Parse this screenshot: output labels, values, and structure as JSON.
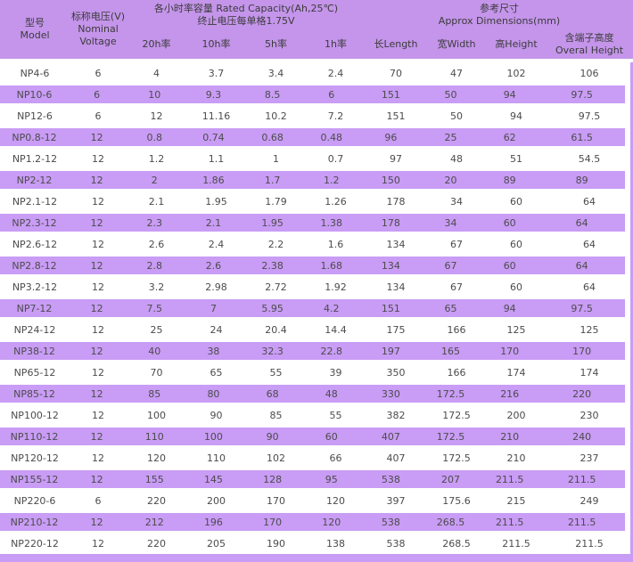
{
  "colors": {
    "header_bg": "#c495ea",
    "stripe_bg": "#c99cf5",
    "header_text": "#3b3b3b",
    "text": "#4c4c4c"
  },
  "header": {
    "model_zh": "型号",
    "model_en": "Model",
    "voltage_zh": "标称电压(V)",
    "voltage_en1": "Nominal",
    "voltage_en2": "Voltage",
    "capacity_line1": "各小时率容量 Rated Capacity(Ah,25℃)",
    "capacity_line2": "终止电压每单格1.75V",
    "capacity_cols": [
      "20h率",
      "10h率",
      "5h率",
      "1h率"
    ],
    "dim_zh": "参考尺寸",
    "dim_en": "Approx Dimensions(mm)",
    "dim_cols": [
      "长Length",
      "宽Width",
      "高Height"
    ],
    "overall_zh": "含端子高度",
    "overall_en": "Overal Height"
  },
  "rows": [
    {
      "model": "NP4-6",
      "voltage": "6",
      "c20": "4",
      "c10": "3.7",
      "c5": "3.4",
      "c1": "2.4",
      "length": "70",
      "width": "47",
      "height": "102",
      "overall": "106"
    },
    {
      "model": "NP10-6",
      "voltage": "6",
      "c20": "10",
      "c10": "9.3",
      "c5": "8.5",
      "c1": "6",
      "length": "151",
      "width": "50",
      "height": "94",
      "overall": "97.5"
    },
    {
      "model": "NP12-6",
      "voltage": "6",
      "c20": "12",
      "c10": "11.16",
      "c5": "10.2",
      "c1": "7.2",
      "length": "151",
      "width": "50",
      "height": "94",
      "overall": "97.5"
    },
    {
      "model": "NP0.8-12",
      "voltage": "12",
      "c20": "0.8",
      "c10": "0.74",
      "c5": "0.68",
      "c1": "0.48",
      "length": "96",
      "width": "25",
      "height": "62",
      "overall": "61.5"
    },
    {
      "model": "NP1.2-12",
      "voltage": "12",
      "c20": "1.2",
      "c10": "1.1",
      "c5": "1",
      "c1": "0.7",
      "length": "97",
      "width": "48",
      "height": "51",
      "overall": "54.5"
    },
    {
      "model": "NP2-12",
      "voltage": "12",
      "c20": "2",
      "c10": "1.86",
      "c5": "1.7",
      "c1": "1.2",
      "length": "150",
      "width": "20",
      "height": "89",
      "overall": "89"
    },
    {
      "model": "NP2.1-12",
      "voltage": "12",
      "c20": "2.1",
      "c10": "1.95",
      "c5": "1.79",
      "c1": "1.26",
      "length": "178",
      "width": "34",
      "height": "60",
      "overall": "64"
    },
    {
      "model": "NP2.3-12",
      "voltage": "12",
      "c20": "2.3",
      "c10": "2.1",
      "c5": "1.95",
      "c1": "1.38",
      "length": "178",
      "width": "34",
      "height": "60",
      "overall": "64"
    },
    {
      "model": "NP2.6-12",
      "voltage": "12",
      "c20": "2.6",
      "c10": "2.4",
      "c5": "2.2",
      "c1": "1.6",
      "length": "134",
      "width": "67",
      "height": "60",
      "overall": "64"
    },
    {
      "model": "NP2.8-12",
      "voltage": "12",
      "c20": "2.8",
      "c10": "2.6",
      "c5": "2.38",
      "c1": "1.68",
      "length": "134",
      "width": "67",
      "height": "60",
      "overall": "64"
    },
    {
      "model": "NP3.2-12",
      "voltage": "12",
      "c20": "3.2",
      "c10": "2.98",
      "c5": "2.72",
      "c1": "1.92",
      "length": "134",
      "width": "67",
      "height": "60",
      "overall": "64"
    },
    {
      "model": "NP7-12",
      "voltage": "12",
      "c20": "7.5",
      "c10": "7",
      "c5": "5.95",
      "c1": "4.2",
      "length": "151",
      "width": "65",
      "height": "94",
      "overall": "97.5"
    },
    {
      "model": "NP24-12",
      "voltage": "12",
      "c20": "25",
      "c10": "24",
      "c5": "20.4",
      "c1": "14.4",
      "length": "175",
      "width": "166",
      "height": "125",
      "overall": "125"
    },
    {
      "model": "NP38-12",
      "voltage": "12",
      "c20": "40",
      "c10": "38",
      "c5": "32.3",
      "c1": "22.8",
      "length": "197",
      "width": "165",
      "height": "170",
      "overall": "170"
    },
    {
      "model": "NP65-12",
      "voltage": "12",
      "c20": "70",
      "c10": "65",
      "c5": "55",
      "c1": "39",
      "length": "350",
      "width": "166",
      "height": "174",
      "overall": "174"
    },
    {
      "model": "NP85-12",
      "voltage": "12",
      "c20": "85",
      "c10": "80",
      "c5": "68",
      "c1": "48",
      "length": "330",
      "width": "172.5",
      "height": "216",
      "overall": "220"
    },
    {
      "model": "NP100-12",
      "voltage": "12",
      "c20": "100",
      "c10": "90",
      "c5": "85",
      "c1": "55",
      "length": "382",
      "width": "172.5",
      "height": "200",
      "overall": "230"
    },
    {
      "model": "NP110-12",
      "voltage": "12",
      "c20": "110",
      "c10": "100",
      "c5": "90",
      "c1": "60",
      "length": "407",
      "width": "172.5",
      "height": "210",
      "overall": "240"
    },
    {
      "model": "NP120-12",
      "voltage": "12",
      "c20": "120",
      "c10": "110",
      "c5": "102",
      "c1": "66",
      "length": "407",
      "width": "172.5",
      "height": "210",
      "overall": "237"
    },
    {
      "model": "NP155-12",
      "voltage": "12",
      "c20": "155",
      "c10": "145",
      "c5": "128",
      "c1": "95",
      "length": "538",
      "width": "207",
      "height": "211.5",
      "overall": "211.5"
    },
    {
      "model": "NP220-6",
      "voltage": "6",
      "c20": "220",
      "c10": "200",
      "c5": "170",
      "c1": "120",
      "length": "397",
      "width": "175.6",
      "height": "215",
      "overall": "249"
    },
    {
      "model": "NP210-12",
      "voltage": "12",
      "c20": "212",
      "c10": "196",
      "c5": "170",
      "c1": "120",
      "length": "538",
      "width": "268.5",
      "height": "211.5",
      "overall": "211.5"
    },
    {
      "model": "NP220-12",
      "voltage": "12",
      "c20": "220",
      "c10": "205",
      "c5": "190",
      "c1": "138",
      "length": "538",
      "width": "268.5",
      "height": "211.5",
      "overall": "211.5"
    }
  ]
}
